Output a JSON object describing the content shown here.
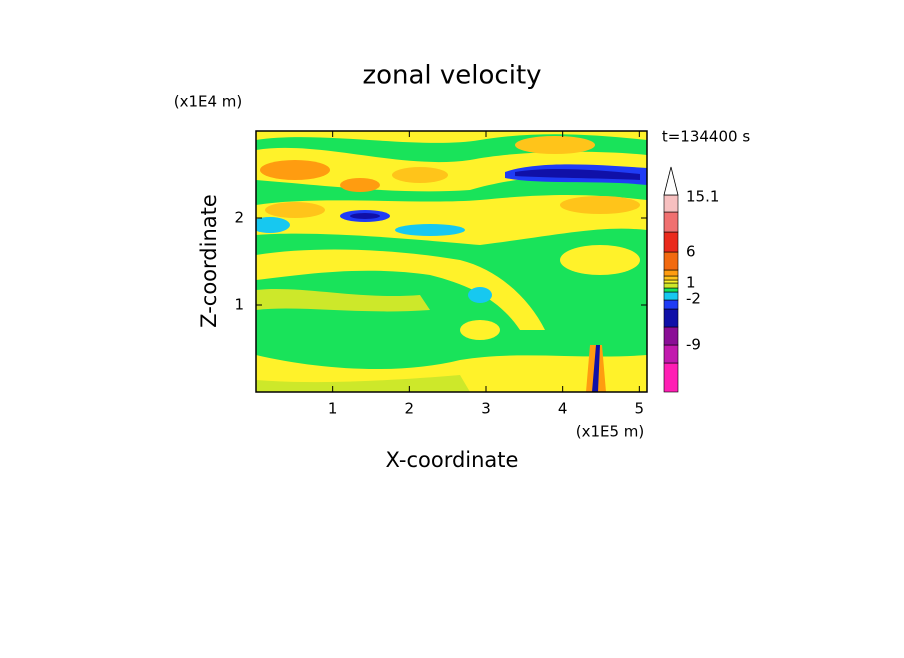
{
  "chart_data": {
    "type": "contour",
    "title": "zonal velocity",
    "xlabel": "X-coordinate",
    "ylabel": "Z-coordinate",
    "x_unit_label": "(x1E5 m)",
    "y_unit_label": "(x1E4 m)",
    "annotation": "t=134400 s",
    "xlim": [
      0,
      5.1
    ],
    "ylim": [
      0,
      3
    ],
    "xticks": [
      1,
      2,
      3,
      4,
      5
    ],
    "yticks": [
      1,
      2
    ],
    "colorbar": {
      "colors": [
        "#ff1fb4",
        "#c21aae",
        "#8a0e96",
        "#1010a8",
        "#1f3cf5",
        "#17c8f0",
        "#19e35a",
        "#cde82a",
        "#fff22a",
        "#ffc41a",
        "#ff9c10",
        "#f26a10",
        "#ea2a1c",
        "#f07070",
        "#f7c0c0"
      ],
      "ticks": [
        15.1,
        6,
        1,
        -2,
        -9
      ]
    }
  }
}
